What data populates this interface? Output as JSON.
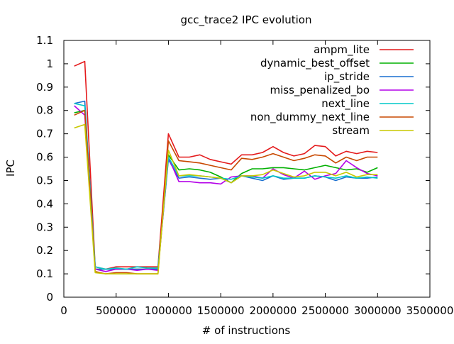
{
  "chart_data": {
    "type": "line",
    "title": "gcc_trace2 IPC evolution",
    "xlabel": "# of instructions",
    "ylabel": "IPC",
    "xlim": [
      0,
      3500000
    ],
    "ylim": [
      0,
      1.1
    ],
    "xticks": [
      0,
      500000,
      1000000,
      1500000,
      2000000,
      2500000,
      3000000,
      3500000
    ],
    "xtick_labels": [
      "0",
      "500000",
      "1000000",
      "1500000",
      "2000000",
      "2500000",
      "3000000",
      "3500000"
    ],
    "yticks": [
      0,
      0.1,
      0.2,
      0.3,
      0.4,
      0.5,
      0.6,
      0.7,
      0.8,
      0.9,
      1,
      1.1
    ],
    "ytick_labels": [
      "0",
      "0.1",
      "0.2",
      "0.3",
      "0.4",
      "0.5",
      "0.6",
      "0.7",
      "0.8",
      "0.9",
      "1",
      "1.1"
    ],
    "grid": false,
    "legend_position": "top-right",
    "x": [
      100000,
      200000,
      300000,
      400000,
      500000,
      600000,
      700000,
      800000,
      900000,
      1000000,
      1100000,
      1200000,
      1300000,
      1400000,
      1500000,
      1600000,
      1700000,
      1800000,
      1900000,
      2000000,
      2100000,
      2200000,
      2300000,
      2400000,
      2500000,
      2600000,
      2700000,
      2800000,
      2900000,
      3000000
    ],
    "series": [
      {
        "name": "ampm_lite",
        "color": "#e41a1c",
        "values": [
          0.99,
          1.01,
          0.13,
          0.12,
          0.13,
          0.13,
          0.13,
          0.13,
          0.13,
          0.7,
          0.6,
          0.6,
          0.61,
          0.59,
          0.58,
          0.57,
          0.61,
          0.61,
          0.62,
          0.645,
          0.62,
          0.605,
          0.615,
          0.65,
          0.645,
          0.605,
          0.625,
          0.615,
          0.625,
          0.62
        ]
      },
      {
        "name": "dynamic_best_offset",
        "color": "#00b000",
        "values": [
          0.79,
          0.8,
          0.12,
          0.12,
          0.12,
          0.12,
          0.12,
          0.12,
          0.12,
          0.61,
          0.545,
          0.55,
          0.545,
          0.535,
          0.515,
          0.49,
          0.53,
          0.55,
          0.55,
          0.555,
          0.555,
          0.55,
          0.545,
          0.555,
          0.565,
          0.555,
          0.545,
          0.55,
          0.535,
          0.555
        ]
      },
      {
        "name": "ip_stride",
        "color": "#1a6fd0",
        "values": [
          0.83,
          0.84,
          0.12,
          0.12,
          0.12,
          0.12,
          0.12,
          0.12,
          0.12,
          0.59,
          0.51,
          0.515,
          0.51,
          0.505,
          0.51,
          0.49,
          0.52,
          0.51,
          0.5,
          0.52,
          0.505,
          0.51,
          0.51,
          0.52,
          0.515,
          0.5,
          0.515,
          0.51,
          0.51,
          0.515
        ]
      },
      {
        "name": "miss_penalized_bo",
        "color": "#b400e8",
        "values": [
          0.82,
          0.78,
          0.12,
          0.11,
          0.12,
          0.12,
          0.115,
          0.12,
          0.115,
          0.6,
          0.495,
          0.495,
          0.49,
          0.49,
          0.485,
          0.515,
          0.52,
          0.52,
          0.51,
          0.55,
          0.525,
          0.51,
          0.54,
          0.505,
          0.52,
          0.53,
          0.585,
          0.555,
          0.53,
          0.52
        ]
      },
      {
        "name": "next_line",
        "color": "#00c8c8",
        "values": [
          0.83,
          0.82,
          0.13,
          0.12,
          0.125,
          0.12,
          0.13,
          0.125,
          0.125,
          0.6,
          0.52,
          0.52,
          0.52,
          0.515,
          0.51,
          0.505,
          0.52,
          0.515,
          0.51,
          0.52,
          0.51,
          0.51,
          0.51,
          0.52,
          0.515,
          0.51,
          0.52,
          0.51,
          0.515,
          0.51
        ]
      },
      {
        "name": "non_dummy_next_line",
        "color": "#c84800",
        "values": [
          0.78,
          0.8,
          0.11,
          0.1,
          0.105,
          0.105,
          0.1,
          0.1,
          0.1,
          0.67,
          0.585,
          0.58,
          0.575,
          0.565,
          0.555,
          0.545,
          0.595,
          0.59,
          0.6,
          0.615,
          0.6,
          0.585,
          0.595,
          0.61,
          0.605,
          0.575,
          0.6,
          0.585,
          0.6,
          0.6
        ]
      },
      {
        "name": "stream",
        "color": "#c8c800",
        "values": [
          0.725,
          0.74,
          0.105,
          0.1,
          0.1,
          0.1,
          0.1,
          0.1,
          0.1,
          0.63,
          0.52,
          0.525,
          0.52,
          0.515,
          0.51,
          0.49,
          0.52,
          0.52,
          0.525,
          0.545,
          0.53,
          0.515,
          0.52,
          0.535,
          0.535,
          0.52,
          0.535,
          0.515,
          0.525,
          0.525
        ]
      }
    ]
  }
}
